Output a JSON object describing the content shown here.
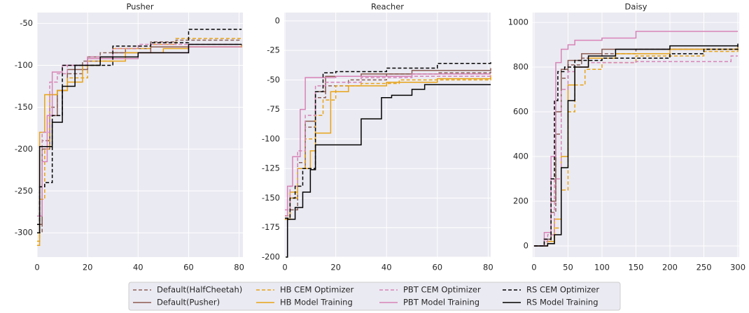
{
  "chart_data": [
    {
      "type": "line",
      "step": true,
      "title": "Pusher",
      "xlim": [
        0,
        81.5
      ],
      "xticks": [
        0,
        20,
        40,
        60,
        80
      ],
      "ylim": [
        -329,
        -37
      ],
      "yticks": [
        -300,
        -250,
        -200,
        -150,
        -100,
        -50
      ],
      "grid": true,
      "series": [
        {
          "x": [
            0,
            2,
            5,
            8,
            12,
            18,
            25,
            35,
            45,
            55,
            81
          ],
          "values": [
            -300,
            -190,
            -150,
            -130,
            -110,
            -95,
            -85,
            -80,
            -72,
            -70,
            -70
          ]
        },
        {
          "x": [
            0,
            2,
            5,
            8,
            12,
            20,
            30,
            45,
            81
          ],
          "values": [
            -290,
            -200,
            -160,
            -130,
            -105,
            -90,
            -85,
            -78,
            -75
          ]
        },
        {
          "x": [
            0,
            1,
            3,
            5,
            8,
            12,
            20,
            30,
            45,
            55,
            81
          ],
          "values": [
            -310,
            -260,
            -200,
            -135,
            -130,
            -115,
            -95,
            -80,
            -75,
            -68,
            -68
          ]
        },
        {
          "x": [
            0,
            1,
            3,
            8,
            12,
            18,
            25,
            35,
            50,
            60,
            81
          ],
          "values": [
            -315,
            -180,
            -135,
            -130,
            -120,
            -100,
            -95,
            -85,
            -80,
            -78,
            -76
          ]
        },
        {
          "x": [
            0,
            2,
            5,
            8,
            12,
            20,
            30,
            40,
            81
          ],
          "values": [
            -280,
            -180,
            -120,
            -110,
            -100,
            -90,
            -80,
            -75,
            -75
          ]
        },
        {
          "x": [
            0,
            2,
            4,
            6,
            10,
            20,
            40,
            60,
            81
          ],
          "values": [
            -280,
            -215,
            -160,
            -108,
            -100,
            -92,
            -85,
            -78,
            -78
          ]
        },
        {
          "x": [
            0,
            1,
            3,
            6,
            10,
            18,
            30,
            45,
            60,
            81
          ],
          "values": [
            -290,
            -245,
            -240,
            -160,
            -100,
            -100,
            -77,
            -73,
            -57,
            -57
          ]
        },
        {
          "x": [
            0,
            1,
            3,
            6,
            10,
            15,
            25,
            40,
            60,
            81
          ],
          "values": [
            -300,
            -197,
            -197,
            -168,
            -125,
            -100,
            -90,
            -85,
            -75,
            -75
          ]
        }
      ]
    },
    {
      "type": "line",
      "step": true,
      "title": "Reacher",
      "xlim": [
        -0.3,
        81
      ],
      "xticks": [
        0,
        20,
        40,
        60,
        80
      ],
      "ylim": [
        -200,
        7
      ],
      "yticks": [
        -200,
        -175,
        -150,
        -125,
        -100,
        -75,
        -50,
        -25,
        0
      ],
      "grid": true,
      "series": [
        {
          "x": [
            0,
            2,
            5,
            8,
            12,
            16,
            25,
            40,
            60,
            81
          ],
          "values": [
            -165,
            -160,
            -120,
            -90,
            -65,
            -55,
            -50,
            -45,
            -44,
            -43
          ]
        },
        {
          "x": [
            0,
            2,
            5,
            8,
            12,
            16,
            30,
            50,
            81
          ],
          "values": [
            -168,
            -150,
            -125,
            -85,
            -60,
            -47,
            -45,
            -42,
            -40
          ]
        },
        {
          "x": [
            0,
            2,
            5,
            8,
            12,
            15,
            20,
            30,
            45,
            81
          ],
          "values": [
            -165,
            -150,
            -125,
            -100,
            -80,
            -67,
            -55,
            -53,
            -50,
            -48
          ]
        },
        {
          "x": [
            0,
            2,
            5,
            10,
            12,
            18,
            25,
            40,
            60,
            81
          ],
          "values": [
            -168,
            -145,
            -125,
            -110,
            -95,
            -60,
            -55,
            -52,
            -49,
            -46
          ]
        },
        {
          "x": [
            0,
            2,
            5,
            8,
            12,
            16,
            30,
            50,
            81
          ],
          "values": [
            -160,
            -140,
            -110,
            -80,
            -55,
            -52,
            -48,
            -47,
            -46
          ]
        },
        {
          "x": [
            0,
            1,
            3,
            6,
            8,
            20,
            50,
            81
          ],
          "values": [
            -165,
            -140,
            -115,
            -75,
            -48,
            -47,
            -45,
            -45
          ]
        },
        {
          "x": [
            0,
            2,
            4,
            7,
            12,
            15,
            20,
            40,
            60,
            81
          ],
          "values": [
            -167,
            -150,
            -140,
            -125,
            -60,
            -44,
            -43,
            -40,
            -36,
            -35
          ]
        },
        {
          "x": [
            0.3,
            1,
            4,
            7,
            10,
            12,
            30,
            33,
            38,
            42,
            50,
            55,
            81
          ],
          "values": [
            -200,
            -168,
            -158,
            -145,
            -126,
            -105,
            -83,
            -83,
            -65,
            -63,
            -58,
            -54,
            -54
          ]
        }
      ]
    },
    {
      "type": "line",
      "step": true,
      "title": "Daisy",
      "xlim": [
        -2,
        302
      ],
      "xticks": [
        0,
        50,
        100,
        150,
        200,
        250,
        300
      ],
      "ylim": [
        -50,
        1044
      ],
      "yticks": [
        0,
        200,
        400,
        600,
        800,
        1000
      ],
      "grid": true,
      "series": [
        {
          "x": [
            0,
            15,
            25,
            32,
            40,
            50,
            70,
            100,
            150,
            200,
            300
          ],
          "values": [
            0,
            20,
            150,
            500,
            750,
            810,
            840,
            860,
            880,
            880,
            885
          ]
        },
        {
          "x": [
            0,
            15,
            25,
            32,
            40,
            50,
            70,
            100,
            300
          ],
          "values": [
            0,
            30,
            200,
            600,
            790,
            830,
            860,
            880,
            890
          ]
        },
        {
          "x": [
            0,
            20,
            30,
            40,
            50,
            60,
            75,
            100,
            150,
            250,
            300
          ],
          "values": [
            0,
            10,
            80,
            250,
            600,
            720,
            790,
            820,
            850,
            870,
            880
          ]
        },
        {
          "x": [
            0,
            20,
            30,
            40,
            50,
            60,
            80,
            120,
            200,
            300
          ],
          "values": [
            0,
            20,
            120,
            400,
            720,
            800,
            840,
            860,
            880,
            890
          ]
        },
        {
          "x": [
            0,
            20,
            30,
            40,
            50,
            60,
            80,
            150,
            250,
            290,
            300
          ],
          "values": [
            0,
            50,
            300,
            700,
            780,
            800,
            820,
            825,
            825,
            850,
            850
          ]
        },
        {
          "x": [
            0,
            15,
            25,
            32,
            40,
            50,
            60,
            100,
            150,
            300
          ],
          "values": [
            0,
            60,
            400,
            820,
            880,
            900,
            920,
            930,
            960,
            960
          ]
        },
        {
          "x": [
            0,
            15,
            25,
            30,
            35,
            45,
            60,
            100,
            150,
            200,
            250,
            300
          ],
          "values": [
            0,
            30,
            300,
            650,
            780,
            800,
            830,
            840,
            840,
            860,
            880,
            895
          ]
        },
        {
          "x": [
            0,
            20,
            30,
            40,
            50,
            60,
            80,
            120,
            200,
            300
          ],
          "values": [
            0,
            10,
            50,
            350,
            650,
            800,
            850,
            880,
            895,
            905
          ]
        }
      ]
    }
  ],
  "legend": {
    "position": "lower center",
    "entries": [
      {
        "name": "Default(HalfCheetah)",
        "color": "#8c5e56",
        "dash": true
      },
      {
        "name": "Default(Pusher)",
        "color": "#8c5a50",
        "dash": false
      },
      {
        "name": "HB CEM Optimizer",
        "color": "#e8a316",
        "dash": true
      },
      {
        "name": "HB Model Training",
        "color": "#e8a316",
        "dash": false
      },
      {
        "name": "PBT CEM Optimizer",
        "color": "#d883b6",
        "dash": true
      },
      {
        "name": "PBT Model Training",
        "color": "#d883b6",
        "dash": false
      },
      {
        "name": "RS CEM Optimizer",
        "color": "#000000",
        "dash": true
      },
      {
        "name": "RS Model Training",
        "color": "#000000",
        "dash": false
      }
    ]
  }
}
